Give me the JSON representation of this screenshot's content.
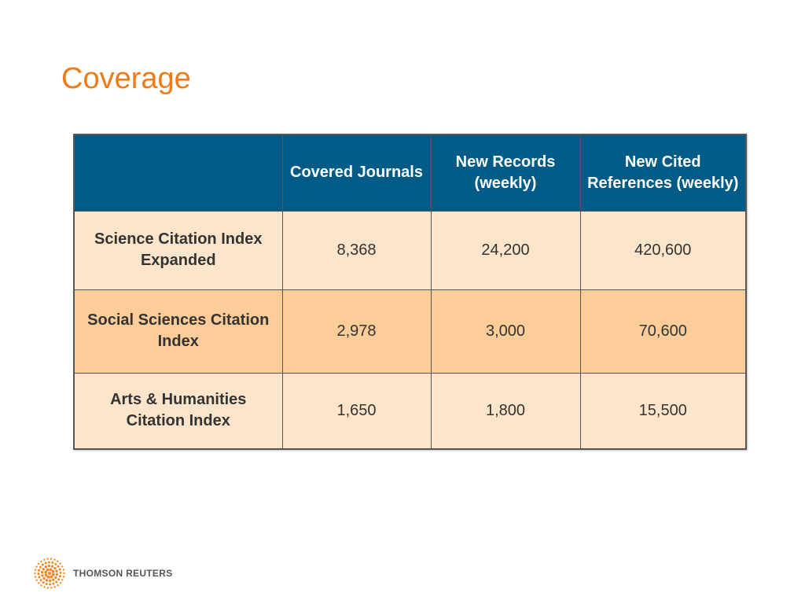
{
  "slide": {
    "title": "Coverage"
  },
  "table": {
    "headers": [
      "",
      "Covered Journals",
      "New Records (weekly)",
      "New Cited References (weekly)"
    ],
    "rows": [
      {
        "label": "Science Citation Index Expanded",
        "covered_journals": "8,368",
        "new_records": "24,200",
        "new_cited_references": "420,600"
      },
      {
        "label": "Social Sciences Citation Index",
        "covered_journals": "2,978",
        "new_records": "3,000",
        "new_cited_references": "70,600"
      },
      {
        "label": "Arts & Humanities Citation Index",
        "covered_journals": "1,650",
        "new_records": "1,800",
        "new_cited_references": "15,500"
      }
    ]
  },
  "footer": {
    "logo_text": "THOMSON REUTERS",
    "logo_icon": "thomson-reuters-dot-sphere-icon"
  },
  "colors": {
    "title": "#ee7b1a",
    "header_bg": "#005b86",
    "row_light": "#fde5cb",
    "row_dark": "#fccc99",
    "logo_orange": "#f08a24"
  }
}
